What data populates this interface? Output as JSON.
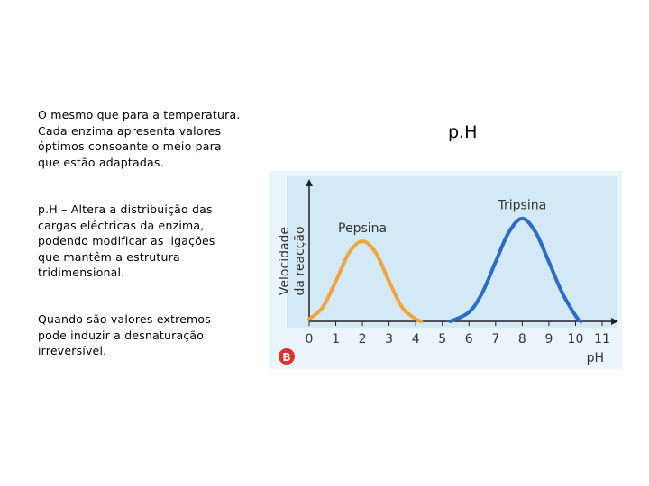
{
  "paragraphs": [
    [
      "O mesmo que para a temperatura.",
      "Cada enzima apresenta valores",
      "óptimos consoante o meio para",
      "que estão adaptadas."
    ],
    [
      "p.H – Altera a distribuição das",
      "cargas eléctricas da enzima,",
      "podendo modificar as ligações",
      "que mantêm a estrutura",
      "tridimensional."
    ],
    [
      "Quando são valores extremos",
      "pode induzir a desnaturação",
      "irreversível."
    ]
  ],
  "heading": "p.H",
  "chart_data": {
    "type": "line",
    "ylabel": [
      "Velocidade",
      "da reacção"
    ],
    "xlabel": "pH",
    "badge": "B",
    "xlim": [
      0,
      11
    ],
    "ylim": [
      0,
      1
    ],
    "xticks": [
      0,
      1,
      2,
      3,
      4,
      5,
      6,
      7,
      8,
      9,
      10,
      11
    ],
    "series": [
      {
        "name": "Pepsina",
        "color": "#f0a43c",
        "x": [
          0,
          0.5,
          1,
          1.5,
          2,
          2.5,
          3,
          3.5,
          4,
          4.2
        ],
        "values": [
          0.02,
          0.12,
          0.35,
          0.6,
          0.7,
          0.6,
          0.35,
          0.12,
          0.02,
          0
        ]
      },
      {
        "name": "Tripsina",
        "color": "#2c6cc4",
        "x": [
          5.3,
          6,
          6.5,
          7,
          7.5,
          8,
          8.5,
          9,
          9.5,
          10,
          10.2
        ],
        "values": [
          0,
          0.08,
          0.25,
          0.52,
          0.78,
          0.9,
          0.78,
          0.52,
          0.25,
          0.05,
          0
        ]
      }
    ]
  }
}
